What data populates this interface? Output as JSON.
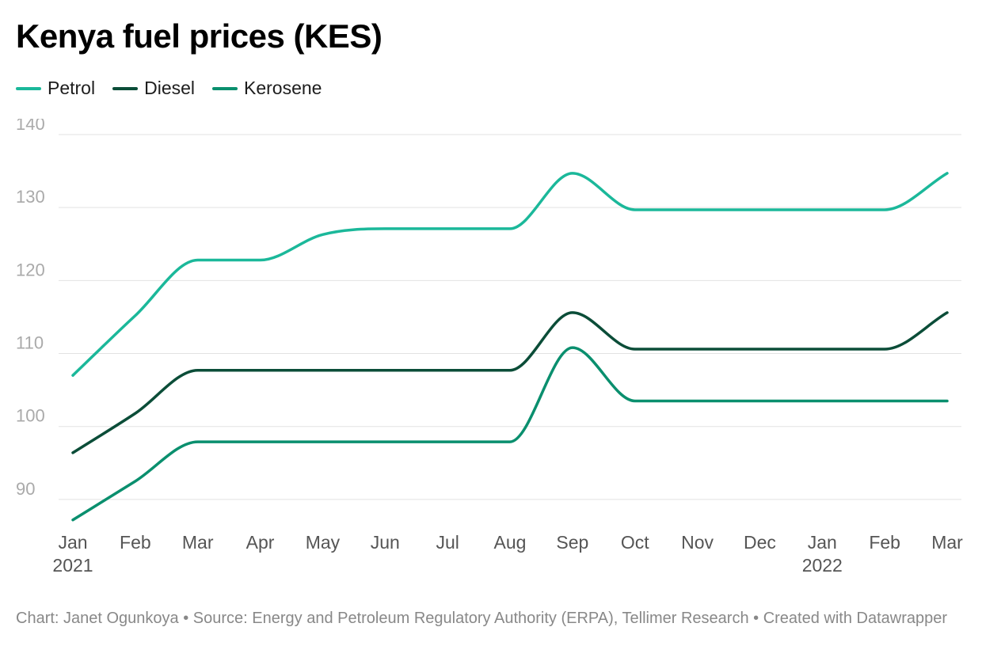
{
  "header": {
    "title": "Kenya fuel prices (KES)"
  },
  "footer": {
    "credit": "Chart: Janet Ogunkoya • Source: Energy and Petroleum Regulatory Authority (ERPA), Tellimer Research • Created with Datawrapper"
  },
  "chart_data": {
    "type": "line",
    "title": "Kenya fuel prices (KES)",
    "xlabel": "",
    "ylabel": "",
    "categories": [
      "Jan 2021",
      "Feb 2021",
      "Mar 2021",
      "Apr 2021",
      "May 2021",
      "Jun 2021",
      "Jul 2021",
      "Aug 2021",
      "Sep 2021",
      "Oct 2021",
      "Nov 2021",
      "Dec 2021",
      "Jan 2022",
      "Feb 2022",
      "Mar 2022"
    ],
    "x_tick_labels": [
      {
        "month": "Jan",
        "year": "2021"
      },
      {
        "month": "Feb",
        "year": ""
      },
      {
        "month": "Mar",
        "year": ""
      },
      {
        "month": "Apr",
        "year": ""
      },
      {
        "month": "May",
        "year": ""
      },
      {
        "month": "Jun",
        "year": ""
      },
      {
        "month": "Jul",
        "year": ""
      },
      {
        "month": "Aug",
        "year": ""
      },
      {
        "month": "Sep",
        "year": ""
      },
      {
        "month": "Oct",
        "year": ""
      },
      {
        "month": "Nov",
        "year": ""
      },
      {
        "month": "Dec",
        "year": ""
      },
      {
        "month": "Jan",
        "year": "2022"
      },
      {
        "month": "Feb",
        "year": ""
      },
      {
        "month": "Mar",
        "year": ""
      }
    ],
    "y_ticks": [
      90,
      100,
      110,
      120,
      130,
      140
    ],
    "ylim": [
      85,
      140
    ],
    "grid": "horizontal",
    "legend_position": "top-left",
    "series": [
      {
        "name": "Petrol",
        "color": "#1bb89a",
        "values": [
          107,
          115.2,
          122.8,
          122.8,
          126.3,
          127.1,
          127.1,
          127.1,
          134.7,
          129.7,
          129.7,
          129.7,
          129.7,
          129.7,
          134.7
        ]
      },
      {
        "name": "Diesel",
        "color": "#0b4d38",
        "values": [
          96.4,
          101.8,
          107.7,
          107.7,
          107.7,
          107.7,
          107.7,
          107.7,
          115.6,
          110.6,
          110.6,
          110.6,
          110.6,
          110.6,
          115.6
        ]
      },
      {
        "name": "Kerosene",
        "color": "#0a8f6e",
        "values": [
          87.2,
          92.5,
          97.9,
          97.9,
          97.9,
          97.9,
          97.9,
          97.9,
          110.8,
          103.5,
          103.5,
          103.5,
          103.5,
          103.5,
          103.5
        ]
      }
    ]
  }
}
